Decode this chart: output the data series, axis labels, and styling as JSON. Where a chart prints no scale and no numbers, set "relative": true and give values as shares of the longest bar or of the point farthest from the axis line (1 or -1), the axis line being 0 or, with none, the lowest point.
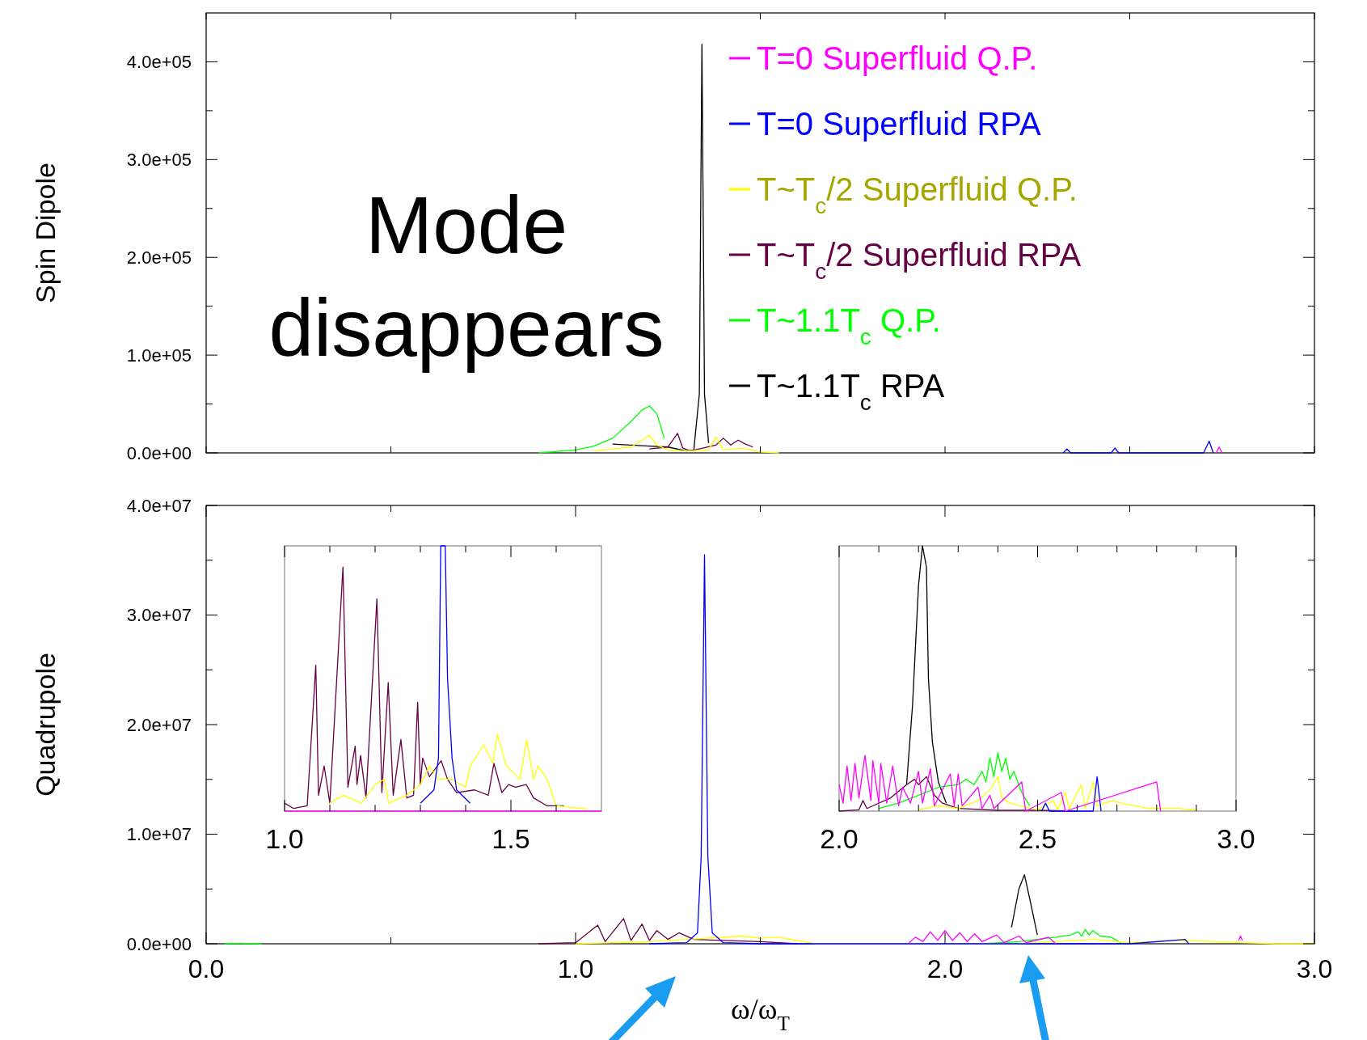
{
  "chart_data": [
    {
      "type": "line",
      "ylabel": "Spin Dipole",
      "xlim": [
        0,
        3
      ],
      "ylim": [
        0,
        450000
      ],
      "tick_labels": "y",
      "legend": "right",
      "annotations": [
        "Mode disappears"
      ],
      "xticks": [
        {
          "value": 0,
          "label": null
        },
        {
          "value": 0.5,
          "label": null
        },
        {
          "value": 1,
          "label": null
        },
        {
          "value": 1.5,
          "label": null
        },
        {
          "value": 2,
          "label": null
        },
        {
          "value": 2.5,
          "label": null
        },
        {
          "value": 3,
          "label": null
        }
      ],
      "yticks": [
        {
          "value": 0,
          "label": "0.0e+00"
        },
        {
          "value": 50000,
          "label": null
        },
        {
          "value": 100000,
          "label": "1.0e+05"
        },
        {
          "value": 150000,
          "label": null
        },
        {
          "value": 200000,
          "label": "2.0e+05"
        },
        {
          "value": 250000,
          "label": null
        },
        {
          "value": 300000,
          "label": "3.0e+05"
        },
        {
          "value": 350000,
          "label": null
        },
        {
          "value": 400000,
          "label": "4.0e+05"
        }
      ],
      "series": [
        {
          "name": "T=0 Superfluid Q.P.",
          "color": "#ff00ff",
          "x": [
            2.734,
            2.742,
            2.75
          ],
          "values": [
            0,
            6000,
            0
          ]
        },
        {
          "name": "T=0 Superfluid RPA",
          "color": "#0000ff",
          "x": [
            2.32,
            2.33,
            2.34,
            2.45,
            2.46,
            2.47,
            2.7,
            2.715,
            2.726
          ],
          "values": [
            0,
            4000,
            0,
            0,
            5000,
            0,
            0,
            12000,
            0
          ]
        },
        {
          "name": "T~T$_{c}$/2 Superfluid Q.P.",
          "color": "#ffff00",
          "x": [
            1.05,
            1.1,
            1.15,
            1.2,
            1.22,
            1.25,
            1.3,
            1.36,
            1.38,
            1.4,
            1.45,
            1.5,
            1.55
          ],
          "values": [
            2000,
            4000,
            6000,
            18000,
            8000,
            3000,
            2000,
            3000,
            16000,
            3000,
            5000,
            1000,
            0
          ]
        },
        {
          "name": "T~T$_{c}$/2 Superfluid RPA",
          "color": "#660044",
          "x": [
            1.2,
            1.25,
            1.276,
            1.29,
            1.31,
            1.38,
            1.4,
            1.42,
            1.44,
            1.46,
            1.48
          ],
          "values": [
            4000,
            6000,
            20000,
            5000,
            2000,
            8000,
            15000,
            8000,
            13000,
            9000,
            6000
          ]
        },
        {
          "name": "T~1.1T$_{c}$ Q.P.",
          "color": "#00ff00",
          "x": [
            0.9,
            1,
            1.05,
            1.1,
            1.15,
            1.18,
            1.2,
            1.22,
            1.24
          ],
          "values": [
            0,
            3000,
            7000,
            15000,
            32000,
            44000,
            48000,
            40000,
            15000
          ]
        },
        {
          "name": "T~1.1T$_{c}$ RPA",
          "color": "#000000",
          "x": [
            1.1,
            1.2,
            1.25,
            1.3,
            1.32,
            1.335,
            1.342,
            1.349,
            1.36
          ],
          "values": [
            9000,
            7000,
            6000,
            2000,
            3000,
            60000,
            418000,
            60000,
            10000
          ]
        }
      ]
    },
    {
      "type": "line",
      "ylabel": "Quadrupole",
      "xlabel": "ω/ω$_{T}$",
      "xlim": [
        0,
        3
      ],
      "ylim": [
        0,
        40000000
      ],
      "xticks": [
        {
          "value": 0,
          "label": "0.0"
        },
        {
          "value": 0.5,
          "label": null
        },
        {
          "value": 1,
          "label": "1.0"
        },
        {
          "value": 1.5,
          "label": null
        },
        {
          "value": 2,
          "label": "2.0"
        },
        {
          "value": 2.5,
          "label": null
        },
        {
          "value": 3,
          "label": "3.0"
        }
      ],
      "yticks": [
        {
          "value": 0,
          "label": "0.0e+00"
        },
        {
          "value": 5000000,
          "label": null
        },
        {
          "value": 10000000,
          "label": "1.0e+07"
        },
        {
          "value": 15000000,
          "label": null
        },
        {
          "value": 20000000,
          "label": "2.0e+07"
        },
        {
          "value": 25000000,
          "label": null
        },
        {
          "value": 30000000,
          "label": "3.0e+07"
        },
        {
          "value": 35000000,
          "label": null
        },
        {
          "value": 40000000,
          "label": "4.0e+07"
        }
      ],
      "series": [
        {
          "color": "#ff00ff",
          "x": [
            1.9,
            1.92,
            1.94,
            1.96,
            1.98,
            2,
            2.02,
            2.04,
            2.06,
            2.08,
            2.1,
            2.14,
            2.16,
            2.2,
            2.22,
            2.28,
            2.3,
            2.5,
            2.795,
            2.8,
            2.805
          ],
          "values": [
            0,
            600000,
            200000,
            1100000,
            300000,
            1200000,
            300000,
            1000000,
            200000,
            900000,
            200000,
            800000,
            100000,
            700000,
            100000,
            600000,
            0,
            null,
            300000,
            700000,
            300000
          ]
        },
        {
          "color": "#0000ff",
          "x": [
            1.2,
            1.3,
            1.33,
            1.34,
            1.349,
            1.358,
            1.37,
            1.4,
            1.5,
            2.5,
            2.65,
            2.66
          ],
          "values": [
            0,
            100000,
            1000000,
            8000000,
            35500000,
            8000000,
            1000000,
            100000,
            0,
            0,
            400000,
            0
          ]
        },
        {
          "color": "#ffff00",
          "x": [
            1,
            1.2,
            1.3,
            1.45,
            1.5,
            1.55,
            1.65,
            2.2,
            2.4,
            2.5,
            2.64,
            2.9,
            3
          ],
          "values": [
            0,
            200000,
            400000,
            700000,
            500000,
            600000,
            0,
            0,
            400000,
            100000,
            300000,
            0,
            0
          ]
        },
        {
          "color": "#660044",
          "x": [
            0.9,
            1,
            1.06,
            1.08,
            1.13,
            1.15,
            1.18,
            1.2,
            1.22,
            1.25,
            1.28,
            1.32,
            1.4,
            1.5,
            1.6
          ],
          "values": [
            0,
            100000,
            1700000,
            200000,
            2300000,
            300000,
            1800000,
            300000,
            1200000,
            400000,
            1000000,
            400000,
            300000,
            200000,
            0
          ]
        },
        {
          "color": "#00ff00",
          "x": [
            0.05,
            0.07,
            0.15,
            1,
            2.1,
            2.2,
            2.3,
            2.34,
            2.36,
            2.37,
            2.38,
            2.39,
            2.4,
            2.42,
            2.45,
            2.48
          ],
          "values": [
            0,
            50000,
            0,
            null,
            0,
            200000,
            600000,
            800000,
            1100000,
            700000,
            1300000,
            800000,
            1200000,
            700000,
            600000,
            0
          ]
        },
        {
          "color": "#000000",
          "x": [
            2.18,
            2.2,
            2.215,
            2.23,
            2.25
          ],
          "values": [
            1500000,
            5000000,
            6300000,
            4000000,
            800000
          ]
        }
      ]
    },
    {
      "type": "line",
      "relative": true,
      "tick_labels": "x",
      "xlim": [
        1.0,
        1.7
      ],
      "xticks": [
        {
          "value": 1.0,
          "label": "1.0"
        },
        {
          "value": 1.1,
          "label": null
        },
        {
          "value": 1.2,
          "label": null
        },
        {
          "value": 1.3,
          "label": null
        },
        {
          "value": 1.4,
          "label": null
        },
        {
          "value": 1.5,
          "label": "1.5"
        },
        {
          "value": 1.6,
          "label": null
        }
      ],
      "series": [
        {
          "color": "#ff00ff",
          "x": [
            1.0,
            1.7
          ],
          "values": [
            0,
            0
          ]
        },
        {
          "color": "#0000ff",
          "x": [
            1.3,
            1.33,
            1.34,
            1.345,
            1.355,
            1.36,
            1.37,
            1.38,
            1.41
          ],
          "values": [
            0.03,
            0.08,
            0.2,
            1,
            1,
            0.5,
            0.2,
            0.08,
            0.03
          ]
        },
        {
          "color": "#ffff00",
          "x": [
            1.1,
            1.13,
            1.17,
            1.2,
            1.22,
            1.23,
            1.27,
            1.3,
            1.32,
            1.34,
            1.37,
            1.4,
            1.41,
            1.44,
            1.46,
            1.47,
            1.49,
            1.52,
            1.535,
            1.55,
            1.56,
            1.58,
            1.6,
            1.67
          ],
          "values": [
            0.03,
            0.06,
            0.03,
            0.1,
            0.12,
            0.03,
            0.06,
            0.1,
            0.17,
            0.12,
            0.12,
            0.09,
            0.17,
            0.25,
            0.18,
            0.29,
            0.17,
            0.12,
            0.27,
            0.12,
            0.17,
            0.12,
            0.02,
            0.008
          ]
        },
        {
          "color": "#660044",
          "x": [
            1.0,
            1.02,
            1.05,
            1.069,
            1.075,
            1.0875,
            1.1,
            1.129,
            1.14,
            1.156,
            1.16,
            1.168,
            1.18,
            1.204,
            1.215,
            1.229,
            1.24,
            1.257,
            1.27,
            1.285,
            1.294,
            1.3,
            1.305,
            1.32,
            1.346,
            1.36,
            1.38,
            1.42,
            1.45,
            1.4625,
            1.48,
            1.495,
            1.51,
            1.534,
            1.55,
            1.58,
            1.617
          ],
          "values": [
            0.03,
            0.01,
            0.02,
            0.55,
            0.06,
            0.17,
            0.03,
            0.92,
            0.09,
            0.245,
            0.1,
            0.21,
            0.05,
            0.8,
            0.07,
            0.485,
            0.06,
            0.27,
            0.05,
            0.06,
            0.41,
            0.1,
            0.2,
            0.13,
            0.19,
            0.12,
            0.07,
            0.08,
            0.06,
            0.18,
            0.07,
            0.1,
            0.09,
            0.1,
            0.05,
            0.02,
            0.02
          ]
        }
      ]
    },
    {
      "type": "line",
      "relative": true,
      "tick_labels": "x",
      "xlim": [
        2.0,
        3.0
      ],
      "xticks": [
        {
          "value": 2.0,
          "label": "2.0"
        },
        {
          "value": 2.1,
          "label": null
        },
        {
          "value": 2.2,
          "label": null
        },
        {
          "value": 2.3,
          "label": null
        },
        {
          "value": 2.4,
          "label": null
        },
        {
          "value": 2.5,
          "label": "2.5"
        },
        {
          "value": 2.6,
          "label": null
        },
        {
          "value": 2.7,
          "label": null
        },
        {
          "value": 2.8,
          "label": null
        },
        {
          "value": 2.9,
          "label": null
        },
        {
          "value": 3.0,
          "label": "3.0"
        }
      ],
      "series": [
        {
          "color": "#ff00ff",
          "x": [
            2.0,
            2.01,
            2.02,
            2.03,
            2.04,
            2.05,
            2.065,
            2.08,
            2.085,
            2.1,
            2.105,
            2.12,
            2.135,
            2.15,
            2.16,
            2.18,
            2.2,
            2.21,
            2.23,
            2.24,
            2.28,
            2.29,
            2.3,
            2.31,
            2.35,
            2.36,
            2.38,
            2.39,
            2.46,
            2.47,
            2.56,
            2.57,
            2.8,
            2.81
          ],
          "values": [
            0.1,
            0.03,
            0.17,
            0.04,
            0.18,
            0.05,
            0.21,
            0.04,
            0.19,
            0.03,
            0.18,
            0.03,
            0.17,
            0.02,
            0.09,
            0.03,
            0.15,
            0.03,
            0.16,
            0.02,
            0.14,
            0.02,
            0.14,
            0.02,
            0.09,
            0.01,
            0.06,
            0.01,
            0.11,
            0,
            0.07,
            0,
            0.11,
            0
          ]
        },
        {
          "color": "#0000ff",
          "x": [
            2.51,
            2.52,
            2.53,
            2.64,
            2.65,
            2.66
          ],
          "values": [
            0,
            0.03,
            0,
            0,
            0.13,
            0
          ]
        },
        {
          "color": "#ffff00",
          "x": [
            2.2,
            2.25,
            2.3,
            2.35,
            2.38,
            2.4,
            2.41,
            2.43,
            2.5,
            2.54,
            2.55,
            2.57,
            2.58,
            2.61,
            2.62,
            2.64,
            2.65,
            2.69,
            2.71,
            2.78,
            2.85,
            2.9
          ],
          "values": [
            0.005,
            0.02,
            0.01,
            0.04,
            0.08,
            0.13,
            0.05,
            0.03,
            0.005,
            0.04,
            0.005,
            0.07,
            0.01,
            0.1,
            0.01,
            0.11,
            0.02,
            0.04,
            0.03,
            0.01,
            0.01,
            0.005
          ]
        },
        {
          "color": "#660044",
          "x": [
            2.0,
            2.05,
            2.06,
            2.07,
            2.13,
            2.17,
            2.19,
            2.2,
            2.22,
            2.24,
            2.26,
            2.3,
            2.4,
            2.5,
            2.6
          ],
          "values": [
            0,
            0.005,
            0.04,
            0.01,
            0.05,
            0.1,
            0.12,
            0.1,
            0.13,
            0.06,
            0.03,
            0.01,
            0.003,
            0.003,
            0
          ]
        },
        {
          "color": "#00ff00",
          "x": [
            2.1,
            2.15,
            2.2,
            2.25,
            2.3,
            2.32,
            2.34,
            2.36,
            2.37,
            2.38,
            2.39,
            2.4,
            2.41,
            2.42,
            2.43,
            2.44,
            2.46,
            2.48
          ],
          "values": [
            0.01,
            0.03,
            0.06,
            0.09,
            0.1,
            0.12,
            0.1,
            0.15,
            0.11,
            0.2,
            0.13,
            0.22,
            0.15,
            0.2,
            0.12,
            0.15,
            0.07,
            0.02
          ]
        },
        {
          "color": "#000000",
          "x": [
            2.17,
            2.185,
            2.2,
            2.21,
            2.22,
            2.225,
            2.235,
            2.25,
            2.27
          ],
          "values": [
            0.1,
            0.4,
            0.85,
            1,
            0.92,
            0.5,
            0.26,
            0.11,
            0.03
          ]
        }
      ]
    }
  ]
}
